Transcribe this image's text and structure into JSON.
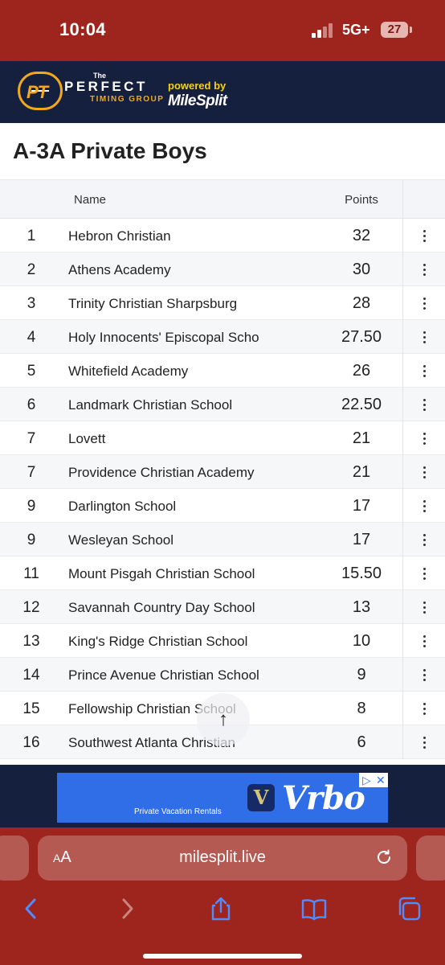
{
  "status_bar": {
    "time": "10:04",
    "network": "5G+",
    "battery": "27"
  },
  "brand": {
    "logo_text": "PT",
    "the": "The",
    "name": "PERFECT",
    "subtitle": "TIMING GROUP",
    "powered_by": "powered by",
    "partner": "MileSplit"
  },
  "page_title": "A-3A Private Boys",
  "table": {
    "columns": {
      "name": "Name",
      "points": "Points"
    },
    "rows": [
      {
        "rank": "1",
        "team": "Hebron Christian",
        "points": "32"
      },
      {
        "rank": "2",
        "team": "Athens Academy",
        "points": "30"
      },
      {
        "rank": "3",
        "team": "Trinity Christian Sharpsburg",
        "points": "28"
      },
      {
        "rank": "4",
        "team": "Holy Innocents' Episcopal Scho",
        "points": "27.50"
      },
      {
        "rank": "5",
        "team": "Whitefield Academy",
        "points": "26"
      },
      {
        "rank": "6",
        "team": "Landmark Christian School",
        "points": "22.50"
      },
      {
        "rank": "7",
        "team": "Lovett",
        "points": "21"
      },
      {
        "rank": "7",
        "team": "Providence Christian Academy",
        "points": "21"
      },
      {
        "rank": "9",
        "team": "Darlington School",
        "points": "17"
      },
      {
        "rank": "9",
        "team": "Wesleyan School",
        "points": "17"
      },
      {
        "rank": "11",
        "team": "Mount Pisgah Christian School",
        "points": "15.50"
      },
      {
        "rank": "12",
        "team": "Savannah Country Day School",
        "points": "13"
      },
      {
        "rank": "13",
        "team": "King's Ridge Christian School",
        "points": "10"
      },
      {
        "rank": "14",
        "team": "Prince Avenue Christian School",
        "points": "9"
      },
      {
        "rank": "15",
        "team": "Fellowship Christian School",
        "points": "8"
      },
      {
        "rank": "16",
        "team": "Southwest Atlanta Christian",
        "points": "6"
      }
    ]
  },
  "scroll_top": {
    "icon": "arrow-up-icon",
    "glyph": "↑"
  },
  "ad": {
    "text": "Private Vacation Rentals",
    "brand": "Vrbo",
    "icon_letter": "V",
    "play_glyph": "▷",
    "close_glyph": "✕"
  },
  "browser": {
    "aa_small": "A",
    "aa_large": "A",
    "url": "milesplit.live"
  },
  "colors": {
    "status_bar": "#9e251d",
    "header": "#15203f",
    "accent": "#f2a81d",
    "ad": "#2f6ee6"
  }
}
